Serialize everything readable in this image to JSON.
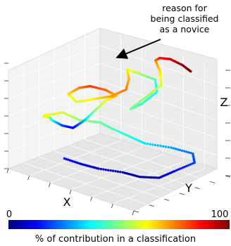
{
  "chart_data": {
    "type": "scatter",
    "projection": "3d",
    "axes": {
      "x_label": "X",
      "y_label": "Y",
      "z_label": "Z",
      "grid": true
    },
    "annotation": {
      "lines": [
        "reason for",
        "being classified",
        "as a novice"
      ]
    },
    "colorbar": {
      "min_label": "0",
      "max_label": "100",
      "label": "% of contribution in a classification",
      "range": [
        0,
        100
      ],
      "colormap": "jet"
    },
    "trajectory": {
      "color_value_unit": "percent",
      "points": [
        [
          0.3,
          0.2,
          0.15,
          15
        ],
        [
          0.4,
          0.25,
          0.12,
          10
        ],
        [
          0.5,
          0.3,
          0.1,
          8
        ],
        [
          0.62,
          0.4,
          0.08,
          5
        ],
        [
          0.72,
          0.45,
          0.06,
          3
        ],
        [
          0.8,
          0.55,
          0.05,
          6
        ],
        [
          0.85,
          0.65,
          0.1,
          12
        ],
        [
          0.9,
          0.8,
          0.15,
          18
        ],
        [
          0.85,
          0.85,
          0.2,
          22
        ],
        [
          0.75,
          0.75,
          0.25,
          28
        ],
        [
          0.65,
          0.6,
          0.3,
          35
        ],
        [
          0.55,
          0.55,
          0.35,
          40
        ],
        [
          0.45,
          0.5,
          0.4,
          45
        ],
        [
          0.4,
          0.45,
          0.45,
          48
        ],
        [
          0.35,
          0.3,
          0.5,
          52
        ],
        [
          0.25,
          0.25,
          0.55,
          58
        ],
        [
          0.15,
          0.2,
          0.5,
          62
        ],
        [
          0.1,
          0.25,
          0.45,
          65
        ],
        [
          0.08,
          0.35,
          0.4,
          55
        ],
        [
          0.05,
          0.4,
          0.35,
          40
        ],
        [
          0.1,
          0.45,
          0.3,
          20
        ],
        [
          0.15,
          0.5,
          0.28,
          10
        ],
        [
          0.2,
          0.55,
          0.35,
          30
        ],
        [
          0.25,
          0.6,
          0.45,
          50
        ],
        [
          0.3,
          0.65,
          0.55,
          62
        ],
        [
          0.35,
          0.7,
          0.6,
          70
        ],
        [
          0.3,
          0.65,
          0.65,
          78
        ],
        [
          0.25,
          0.55,
          0.7,
          82
        ],
        [
          0.2,
          0.5,
          0.68,
          76
        ],
        [
          0.15,
          0.45,
          0.62,
          66
        ],
        [
          0.25,
          0.4,
          0.6,
          58
        ],
        [
          0.35,
          0.45,
          0.65,
          64
        ],
        [
          0.45,
          0.5,
          0.7,
          72
        ],
        [
          0.5,
          0.6,
          0.75,
          76
        ],
        [
          0.45,
          0.7,
          0.8,
          70
        ],
        [
          0.4,
          0.75,
          0.85,
          64
        ],
        [
          0.45,
          0.8,
          0.82,
          55
        ],
        [
          0.55,
          0.85,
          0.78,
          45
        ],
        [
          0.6,
          0.8,
          0.7,
          38
        ],
        [
          0.55,
          0.7,
          0.6,
          42
        ],
        [
          0.5,
          0.65,
          0.55,
          48
        ],
        [
          0.55,
          0.75,
          0.65,
          52
        ],
        [
          0.6,
          0.85,
          0.75,
          58
        ],
        [
          0.55,
          0.9,
          0.85,
          66
        ],
        [
          0.5,
          0.92,
          0.92,
          74
        ],
        [
          0.55,
          0.9,
          0.97,
          85
        ],
        [
          0.62,
          0.92,
          0.98,
          92
        ],
        [
          0.7,
          0.94,
          0.95,
          97
        ],
        [
          0.76,
          0.96,
          0.9,
          100
        ]
      ]
    }
  }
}
